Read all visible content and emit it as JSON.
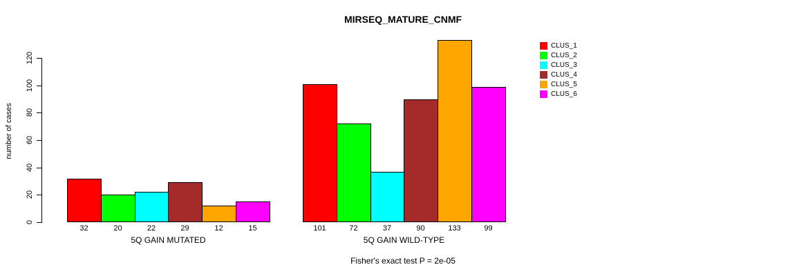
{
  "chart_data": {
    "type": "bar",
    "title": "MIRSEQ_MATURE_CNMF",
    "ylabel": "number of cases",
    "xlabel": "",
    "categories": [
      "5Q GAIN MUTATED",
      "5Q GAIN WILD-TYPE"
    ],
    "series": [
      {
        "name": "CLUS_1",
        "color": "#FF0000",
        "values": [
          32,
          101
        ]
      },
      {
        "name": "CLUS_2",
        "color": "#00FF00",
        "values": [
          20,
          72
        ]
      },
      {
        "name": "CLUS_3",
        "color": "#00FFFF",
        "values": [
          22,
          37
        ]
      },
      {
        "name": "CLUS_4",
        "color": "#A52A2A",
        "values": [
          29,
          90
        ]
      },
      {
        "name": "CLUS_5",
        "color": "#FFA500",
        "values": [
          12,
          133
        ]
      },
      {
        "name": "CLUS_6",
        "color": "#FF00FF",
        "values": [
          15,
          99
        ]
      }
    ],
    "yticks": [
      0,
      20,
      40,
      60,
      80,
      100,
      120
    ],
    "ylim": [
      0,
      135
    ],
    "grid": false,
    "bar_value_labels": true,
    "legend_position": "right",
    "annotation": "Fisher's exact test P = 2e-05"
  }
}
